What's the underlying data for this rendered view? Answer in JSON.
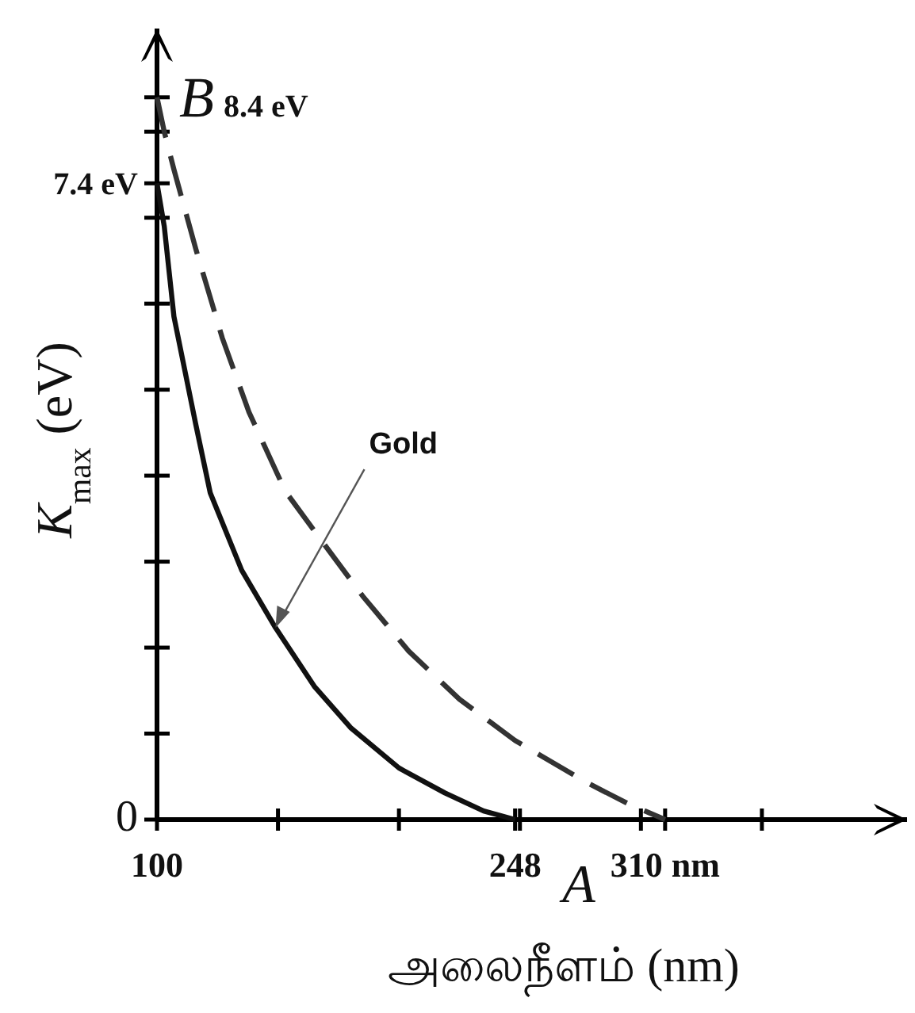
{
  "chart_data": {
    "type": "line",
    "xlabel": "அலைநீளம்     (nm)",
    "ylabel": "K$_{max}$ (eV)",
    "xlim": [
      100,
      410
    ],
    "ylim": [
      0,
      9.2
    ],
    "xticks": [
      {
        "value": 100,
        "label": "100"
      },
      {
        "value": 150,
        "label": null
      },
      {
        "value": 200,
        "label": null
      },
      {
        "value": 248,
        "label": "248"
      },
      {
        "value": 250,
        "label": null
      },
      {
        "value": 300,
        "label": null
      },
      {
        "value": 310,
        "label": "310 nm"
      },
      {
        "value": 350,
        "label": null
      }
    ],
    "yticks": [
      0,
      {
        "value": 1,
        "label": null
      },
      {
        "value": 2,
        "label": null
      },
      {
        "value": 3,
        "label": null
      },
      {
        "value": 4,
        "label": null
      },
      {
        "value": 5,
        "label": null
      },
      {
        "value": 6,
        "label": null
      },
      {
        "value": 7,
        "label": null
      },
      {
        "value": 7.4,
        "label": "7.4 eV"
      },
      {
        "value": 8,
        "label": null
      },
      {
        "value": 8.4,
        "label": null
      }
    ],
    "series": [
      {
        "color": "#111111",
        "line_style": "solid",
        "x": [
          100,
          103,
          107,
          116,
          122,
          135,
          149,
          165,
          180,
          200,
          219,
          235,
          248
        ],
        "values": [
          7.4,
          6.9,
          5.85,
          4.6,
          3.8,
          2.9,
          2.23,
          1.55,
          1.07,
          0.6,
          0.31,
          0.1,
          0
        ]
      },
      {
        "color": "#333333",
        "line_style": "dashed",
        "x": [
          100,
          103,
          107,
          116,
          127,
          138,
          153,
          166,
          185,
          204,
          225,
          248,
          277,
          295,
          310
        ],
        "values": [
          8.4,
          8.0,
          7.56,
          6.64,
          5.6,
          4.74,
          3.82,
          3.32,
          2.6,
          1.96,
          1.4,
          0.92,
          0.44,
          0.18,
          0
        ]
      }
    ],
    "annotations": [
      {
        "text": "Gold",
        "x": 149,
        "y": 2.23
      },
      {
        "text": "B 8.4 eV",
        "x": 100,
        "y": 8.4
      },
      {
        "text": "A",
        "x": 310,
        "y": 0
      }
    ]
  }
}
